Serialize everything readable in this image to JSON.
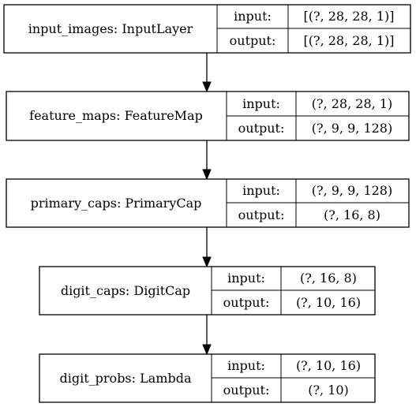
{
  "layers": [
    {
      "id": "input_images",
      "label": "input_images: InputLayer",
      "input": "[(?, 28, 28, 1)]",
      "output": "[(?, 28, 28, 1)]",
      "input_key": "input:",
      "output_key": "output:"
    },
    {
      "id": "feature_maps",
      "label": "feature_maps: FeatureMap",
      "input": "(?, 28, 28, 1)",
      "output": "(?, 9, 9, 128)",
      "input_key": "input:",
      "output_key": "output:"
    },
    {
      "id": "primary_caps",
      "label": "primary_caps: PrimaryCap",
      "input": "(?, 9, 9, 128)",
      "output": "(?, 16, 8)",
      "input_key": "input:",
      "output_key": "output:"
    },
    {
      "id": "digit_caps",
      "label": "digit_caps: DigitCap",
      "input": "(?, 16, 8)",
      "output": "(?, 10, 16)",
      "input_key": "input:",
      "output_key": "output:"
    },
    {
      "id": "digit_probs",
      "label": "digit_probs: Lambda",
      "input": "(?, 10, 16)",
      "output": "(?, 10)",
      "input_key": "input:",
      "output_key": "output:"
    }
  ]
}
